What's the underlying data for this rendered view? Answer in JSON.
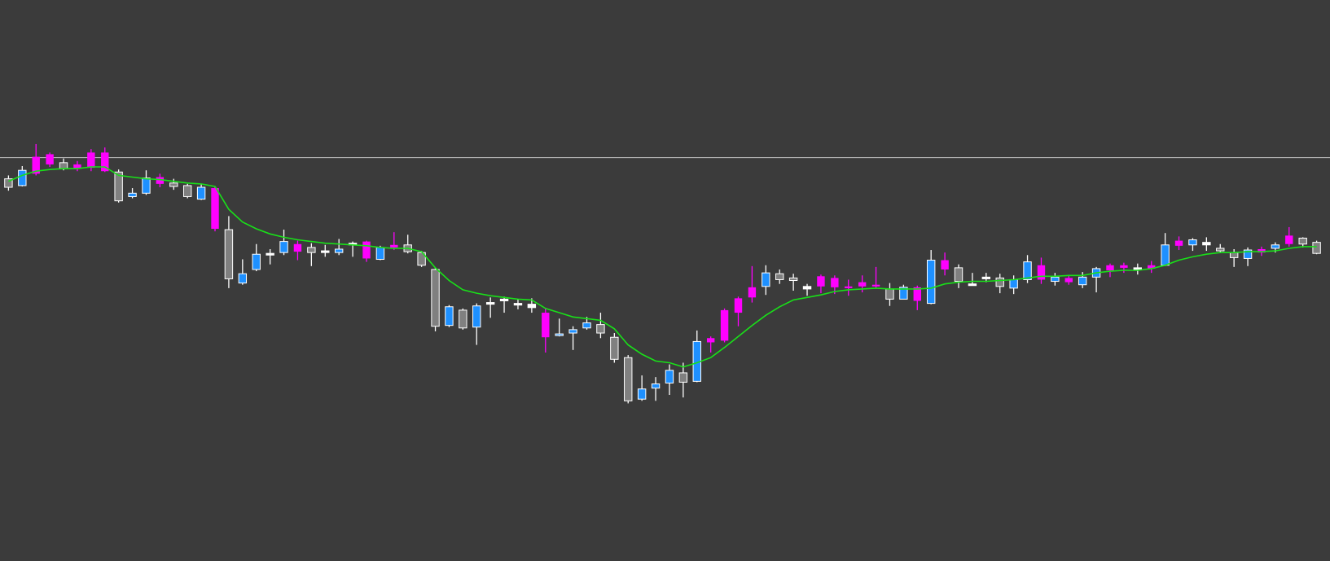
{
  "chart_data": {
    "type": "candlestick",
    "ylim": [
      0,
      662
    ],
    "background": "#3b3b3b",
    "hline": {
      "value": 476,
      "color": "#c8c8c8"
    },
    "up_stroke": "#ffffff",
    "open": [
      451,
      443,
      477,
      480,
      470,
      468,
      482,
      482,
      459,
      430,
      434,
      453,
      446,
      443,
      427,
      440,
      391,
      328,
      344,
      361,
      364,
      374,
      370,
      364,
      364,
      373,
      377,
      356,
      373,
      373,
      364,
      344,
      278,
      296,
      276,
      303,
      307,
      302,
      299,
      293,
      266,
      269,
      275,
      279,
      264,
      240,
      191,
      204,
      210,
      222,
      212,
      263,
      296,
      310,
      323,
      324,
      339,
      334,
      321,
      336,
      334,
      324,
      329,
      326,
      321,
      309,
      323,
      304,
      355,
      346,
      325,
      333,
      334,
      322,
      332,
      349,
      330,
      334,
      326,
      335,
      349,
      349,
      344,
      349,
      349,
      378,
      373,
      373,
      369,
      364,
      357,
      368,
      369,
      384,
      381,
      376
    ],
    "high": [
      455,
      466,
      492,
      482,
      475,
      472,
      486,
      488,
      462,
      440,
      461,
      457,
      451,
      445,
      445,
      442,
      407,
      356,
      374,
      368,
      391,
      378,
      375,
      373,
      380,
      377,
      378,
      372,
      388,
      385,
      366,
      346,
      302,
      298,
      304,
      311,
      312,
      309,
      310,
      298,
      286,
      277,
      288,
      293,
      269,
      243,
      219,
      217,
      232,
      234,
      272,
      265,
      298,
      312,
      348,
      349,
      344,
      339,
      327,
      338,
      337,
      332,
      337,
      347,
      328,
      326,
      325,
      367,
      364,
      350,
      340,
      340,
      339,
      337,
      361,
      358,
      340,
      337,
      341,
      347,
      351,
      352,
      351,
      354,
      387,
      383,
      381,
      382,
      374,
      368,
      370,
      371,
      376,
      394,
      382,
      378
    ],
    "low": [
      437,
      442,
      455,
      465,
      461,
      460,
      460,
      459,
      423,
      428,
      432,
      441,
      438,
      428,
      426,
      389,
      322,
      326,
      342,
      350,
      361,
      355,
      348,
      359,
      361,
      359,
      353,
      355,
      367,
      363,
      347,
      271,
      276,
      273,
      255,
      287,
      293,
      297,
      293,
      246,
      265,
      249,
      273,
      263,
      234,
      186,
      189,
      189,
      196,
      193,
      211,
      246,
      258,
      277,
      305,
      314,
      327,
      319,
      313,
      316,
      315,
      313,
      317,
      322,
      301,
      309,
      296,
      303,
      337,
      322,
      325,
      329,
      316,
      315,
      328,
      327,
      325,
      326,
      322,
      317,
      335,
      340,
      338,
      340,
      348,
      367,
      366,
      366,
      364,
      347,
      348,
      360,
      364,
      371,
      370,
      362
    ],
    "close": [
      441,
      461,
      457,
      468,
      463,
      463,
      464,
      460,
      425,
      434,
      452,
      445,
      442,
      430,
      441,
      392,
      333,
      339,
      362,
      363,
      377,
      365,
      364,
      366,
      368,
      375,
      357,
      370,
      370,
      365,
      349,
      277,
      300,
      275,
      301,
      305,
      309,
      304,
      303,
      264,
      268,
      273,
      281,
      269,
      238,
      189,
      203,
      209,
      225,
      211,
      259,
      258,
      260,
      293,
      311,
      340,
      332,
      331,
      324,
      324,
      323,
      322,
      324,
      324,
      309,
      323,
      307,
      355,
      344,
      330,
      327,
      335,
      324,
      332,
      353,
      332,
      335,
      329,
      335,
      345,
      343,
      346,
      346,
      345,
      373,
      372,
      379,
      376,
      366,
      358,
      367,
      364,
      373,
      374,
      374,
      363
    ],
    "colors": [
      "#808080",
      "#1e90ff",
      "#ff00ff",
      "#ff00ff",
      "#808080",
      "#ff00ff",
      "#ff00ff",
      "#ff00ff",
      "#808080",
      "#1e90ff",
      "#1e90ff",
      "#ff00ff",
      "#808080",
      "#808080",
      "#1e90ff",
      "#ff00ff",
      "#808080",
      "#1e90ff",
      "#1e90ff",
      "#ffffff",
      "#1e90ff",
      "#ff00ff",
      "#808080",
      "#ffffff",
      "#1e90ff",
      "#ffffff",
      "#ff00ff",
      "#1e90ff",
      "#ff00ff",
      "#808080",
      "#808080",
      "#808080",
      "#1e90ff",
      "#808080",
      "#1e90ff",
      "#ffffff",
      "#ffffff",
      "#ffffff",
      "#ffffff",
      "#ff00ff",
      "#1e90ff",
      "#1e90ff",
      "#1e90ff",
      "#808080",
      "#808080",
      "#808080",
      "#1e90ff",
      "#1e90ff",
      "#1e90ff",
      "#808080",
      "#1e90ff",
      "#ff00ff",
      "#ff00ff",
      "#ff00ff",
      "#ff00ff",
      "#1e90ff",
      "#808080",
      "#808080",
      "#ffffff",
      "#ff00ff",
      "#ff00ff",
      "#ff00ff",
      "#ff00ff",
      "#ff00ff",
      "#808080",
      "#1e90ff",
      "#ff00ff",
      "#1e90ff",
      "#ff00ff",
      "#808080",
      "#ffffff",
      "#ffffff",
      "#808080",
      "#1e90ff",
      "#1e90ff",
      "#ff00ff",
      "#1e90ff",
      "#ff00ff",
      "#1e90ff",
      "#1e90ff",
      "#ff00ff",
      "#ff00ff",
      "#ffffff",
      "#ff00ff",
      "#1e90ff",
      "#ff00ff",
      "#1e90ff",
      "#ffffff",
      "#808080",
      "#808080",
      "#1e90ff",
      "#ff00ff",
      "#1e90ff",
      "#ff00ff",
      "#808080",
      "#808080"
    ],
    "ma": {
      "color": "#19e019",
      "values": [
        448,
        455,
        460,
        462,
        463,
        463,
        465,
        465,
        455,
        453,
        451,
        450,
        448,
        446,
        445,
        442,
        415,
        400,
        392,
        386,
        382,
        379,
        377,
        375,
        374,
        373,
        372,
        370,
        369,
        369,
        365,
        346,
        331,
        320,
        316,
        313,
        311,
        309,
        308,
        298,
        293,
        288,
        286,
        284,
        274,
        255,
        244,
        236,
        234,
        229,
        234,
        240,
        252,
        265,
        278,
        290,
        300,
        308,
        311,
        314,
        318,
        320,
        321,
        322,
        321,
        321,
        321,
        322,
        327,
        329,
        330,
        330,
        331,
        332,
        334,
        336,
        336,
        337,
        337,
        340,
        342,
        343,
        343,
        345,
        349,
        355,
        359,
        362,
        364,
        364,
        365,
        365,
        366,
        369,
        371,
        371
      ]
    }
  }
}
